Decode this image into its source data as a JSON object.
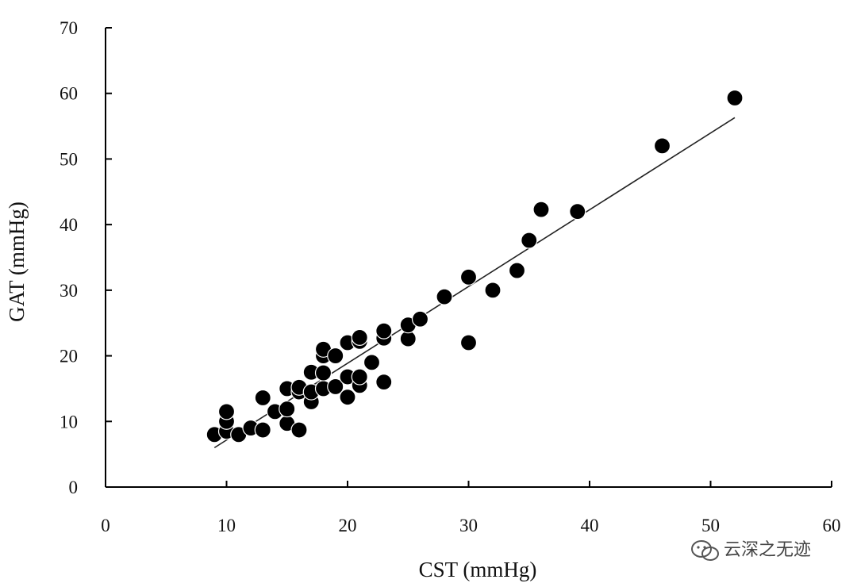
{
  "chart_data": {
    "type": "scatter",
    "title": "",
    "xlabel": "CST (mmHg)",
    "ylabel": "GAT (mmHg)",
    "xlim": [
      0,
      60
    ],
    "ylim": [
      0,
      70
    ],
    "x_ticks": [
      0,
      10,
      20,
      30,
      40,
      50,
      60
    ],
    "y_ticks": [
      0,
      10,
      20,
      30,
      40,
      50,
      60,
      70
    ],
    "grid": false,
    "legend": "none",
    "marker_color": "#000000",
    "line_color": "#222222",
    "series": [
      {
        "points": [
          {
            "x": 9,
            "y": 8
          },
          {
            "x": 10,
            "y": 8.5
          },
          {
            "x": 10,
            "y": 10
          },
          {
            "x": 10,
            "y": 11.5
          },
          {
            "x": 11,
            "y": 8
          },
          {
            "x": 12,
            "y": 9
          },
          {
            "x": 13,
            "y": 8.7
          },
          {
            "x": 13,
            "y": 13.6
          },
          {
            "x": 14,
            "y": 11.5
          },
          {
            "x": 15,
            "y": 9.7
          },
          {
            "x": 15,
            "y": 11.9
          },
          {
            "x": 15,
            "y": 15
          },
          {
            "x": 16,
            "y": 8.7
          },
          {
            "x": 16,
            "y": 14.5
          },
          {
            "x": 16,
            "y": 15.2
          },
          {
            "x": 17,
            "y": 13
          },
          {
            "x": 17,
            "y": 14.5
          },
          {
            "x": 17,
            "y": 17.5
          },
          {
            "x": 18,
            "y": 15
          },
          {
            "x": 18,
            "y": 17.4
          },
          {
            "x": 18,
            "y": 20
          },
          {
            "x": 18,
            "y": 21
          },
          {
            "x": 19,
            "y": 15.3
          },
          {
            "x": 19,
            "y": 20
          },
          {
            "x": 20,
            "y": 13.7
          },
          {
            "x": 20,
            "y": 16.8
          },
          {
            "x": 20,
            "y": 22
          },
          {
            "x": 21,
            "y": 15.5
          },
          {
            "x": 21,
            "y": 16.8
          },
          {
            "x": 21,
            "y": 22.2
          },
          {
            "x": 21,
            "y": 22.8
          },
          {
            "x": 22,
            "y": 19
          },
          {
            "x": 23,
            "y": 16
          },
          {
            "x": 23,
            "y": 22.7
          },
          {
            "x": 23,
            "y": 23.8
          },
          {
            "x": 25,
            "y": 22.6
          },
          {
            "x": 25,
            "y": 24.7
          },
          {
            "x": 26,
            "y": 25.6
          },
          {
            "x": 28,
            "y": 29
          },
          {
            "x": 30,
            "y": 22
          },
          {
            "x": 30,
            "y": 32
          },
          {
            "x": 32,
            "y": 30
          },
          {
            "x": 34,
            "y": 33
          },
          {
            "x": 35,
            "y": 37.6
          },
          {
            "x": 36,
            "y": 42.3
          },
          {
            "x": 39,
            "y": 42
          },
          {
            "x": 46,
            "y": 52
          },
          {
            "x": 52,
            "y": 59.3
          }
        ]
      }
    ],
    "trend_line": {
      "x": [
        9,
        52
      ],
      "y": [
        6,
        56.3
      ]
    }
  },
  "watermark": {
    "text": "云深之无迹",
    "icon": "wechat-icon"
  }
}
